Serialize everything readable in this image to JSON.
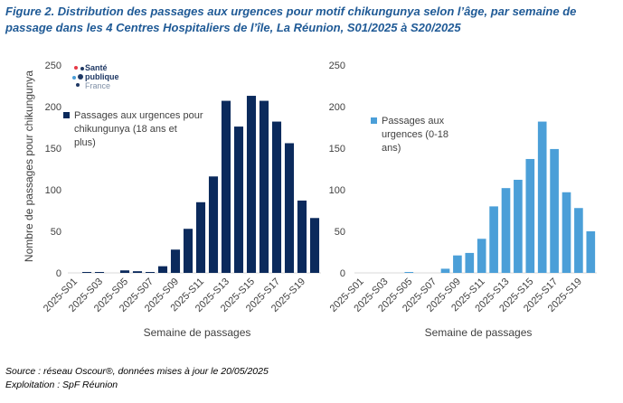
{
  "figure": {
    "title": "Figure 2. Distribution des passages aux urgences pour motif chikungunya selon l’âge, par semaine de passage dans les 4 Centres Hospitaliers de l’île, La Réunion, S01/2025 à S20/2025",
    "source": "Source : réseau Oscour®, données mises à jour le 20/05/2025",
    "exploitation": "Exploitation :  SpF Réunion"
  },
  "logo": {
    "line1": "Santé",
    "line2": "publique",
    "line3": "France"
  },
  "colors": {
    "dark_bar": "#0b2a5c",
    "light_bar": "#4b9fd8",
    "title": "#1f5a96"
  },
  "chart_data": [
    {
      "type": "bar",
      "categories": [
        "2025-S01",
        "2025-S02",
        "2025-S03",
        "2025-S04",
        "2025-S05",
        "2025-S06",
        "2025-S07",
        "2025-S08",
        "2025-S09",
        "2025-S10",
        "2025-S11",
        "2025-S12",
        "2025-S13",
        "2025-S14",
        "2025-S15",
        "2025-S16",
        "2025-S17",
        "2025-S18",
        "2025-S19",
        "2025-S20"
      ],
      "tick_labels": [
        "2025-S01",
        "2025-S03",
        "2025-S05",
        "2025-S07",
        "2025-S09",
        "2025-S11",
        "2025-S13",
        "2025-S15",
        "2025-S17",
        "2025-S19"
      ],
      "series": [
        {
          "name": "Passages aux urgences pour chikungunya (18 ans et plus)",
          "values": [
            0,
            1,
            1,
            0,
            3,
            2,
            1,
            8,
            28,
            53,
            85,
            116,
            207,
            176,
            213,
            207,
            182,
            156,
            87,
            66
          ]
        }
      ],
      "ylabel": "Nombre de passages pour chikungunya",
      "xlabel": "Semaine de passages",
      "ylim": [
        0,
        250
      ],
      "yticks": [
        0,
        50,
        100,
        150,
        200,
        250
      ],
      "grid": false,
      "legend_position": "upper-left"
    },
    {
      "type": "bar",
      "categories": [
        "2025-S01",
        "2025-S02",
        "2025-S03",
        "2025-S04",
        "2025-S05",
        "2025-S06",
        "2025-S07",
        "2025-S08",
        "2025-S09",
        "2025-S10",
        "2025-S11",
        "2025-S12",
        "2025-S13",
        "2025-S14",
        "2025-S15",
        "2025-S16",
        "2025-S17",
        "2025-S18",
        "2025-S19",
        "2025-S20"
      ],
      "tick_labels": [
        "2025-S01",
        "2025-S03",
        "2025-S05",
        "2025-S07",
        "2025-S09",
        "2025-S11",
        "2025-S13",
        "2025-S15",
        "2025-S17",
        "2025-S19"
      ],
      "series": [
        {
          "name": "Passages aux urgences (0-18 ans)",
          "values": [
            0,
            0,
            0,
            0,
            1,
            0,
            0,
            5,
            21,
            24,
            41,
            80,
            102,
            112,
            137,
            182,
            149,
            97,
            78,
            50
          ]
        }
      ],
      "ylabel": "",
      "xlabel": "Semaine de passages",
      "ylim": [
        0,
        250
      ],
      "yticks": [
        0,
        50,
        100,
        150,
        200,
        250
      ],
      "grid": false,
      "legend_position": "upper-left"
    }
  ]
}
